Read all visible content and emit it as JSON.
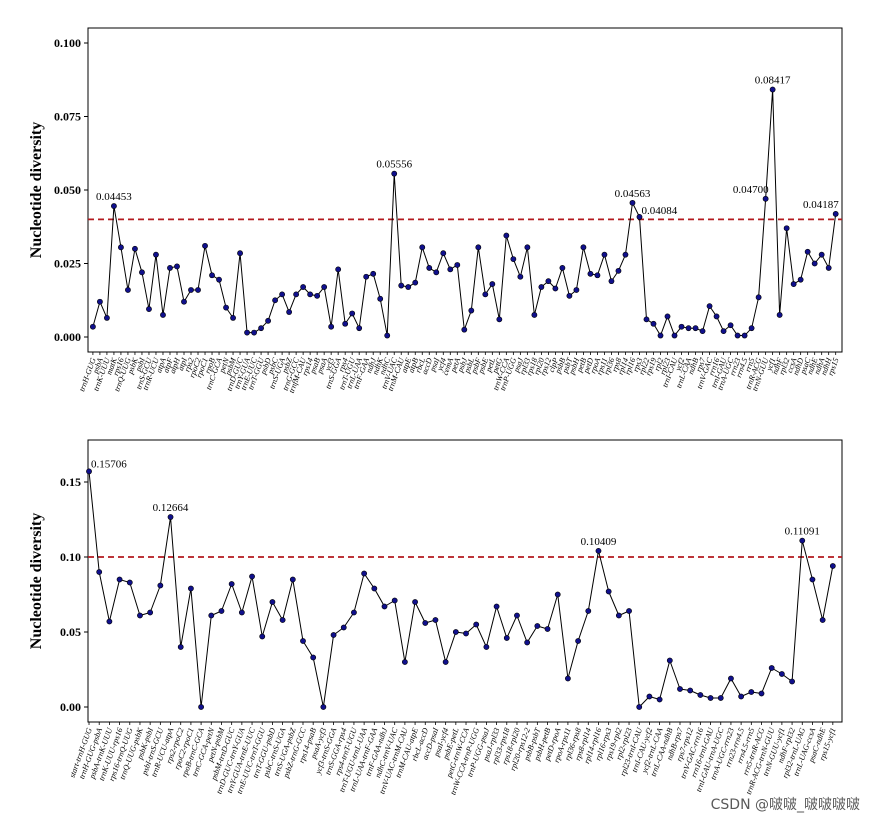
{
  "watermark": "CSDN @啵啵_啵啵啵啵",
  "chart_data": [
    {
      "type": "line",
      "ylabel": "Nucleotide diversity",
      "categories": [
        "trnH-GUG",
        "psbA",
        "trnK-UUU",
        "matK",
        "rps16",
        "trnQ-UUG",
        "psbK",
        "psbI",
        "trnS-GCU",
        "trnR-UCU",
        "atpA",
        "atpF",
        "atpH",
        "atpI",
        "rps2",
        "rpoC2",
        "rpoC1",
        "rpoB",
        "trnC-GCA",
        "petN",
        "psbM",
        "trnD-GUC",
        "trnY-GUA",
        "trnE-UUC",
        "trnT-GGU",
        "psbD",
        "psbC",
        "trnS-UGA",
        "psbZ",
        "trnG-GCC",
        "trnfM-CAU",
        "rps14",
        "psaB",
        "psaA",
        "ycf3",
        "trnS-GGA",
        "rps4",
        "trnT-UGU",
        "trnL-UAA",
        "trnF-GAA",
        "ndhJ",
        "ndhK",
        "ndhC",
        "trnV-UAC",
        "trnM-CAU",
        "atpE",
        "atpB",
        "rbcL",
        "accD",
        "psaI",
        "ycf4",
        "cemA",
        "petA",
        "psbJ",
        "psbL",
        "psbF",
        "psbE",
        "petL",
        "petG",
        "trnW-CCA",
        "trnP-UGG",
        "psaJ",
        "rpl33",
        "rps18",
        "rpl20",
        "rps12",
        "clpP",
        "psbB",
        "psbT",
        "psbH",
        "petB",
        "petD",
        "rpoA",
        "rps11",
        "rpl36",
        "rps8",
        "rpl14",
        "rpl16",
        "rps3",
        "rpl22",
        "rps19",
        "rpl2",
        "rpl23",
        "trnI-CAU",
        "ycf2",
        "trnL-CAA",
        "ndhB",
        "rps7",
        "trnV-GAC",
        "rrn16",
        "trnI-GAU",
        "trnA-UGC",
        "rrn23",
        "rrn4.5",
        "rrn5",
        "trnR-ACG",
        "trnN-GUU",
        "ycf1",
        "ndhF",
        "rpl32",
        "ccsA",
        "ndhD",
        "psaC",
        "ndhE",
        "ndhA",
        "ndhH",
        "rps15"
      ],
      "values": [
        0.0035,
        0.012,
        0.0065,
        0.04453,
        0.0305,
        0.016,
        0.03,
        0.022,
        0.0095,
        0.028,
        0.0075,
        0.0235,
        0.024,
        0.012,
        0.016,
        0.016,
        0.031,
        0.021,
        0.0195,
        0.01,
        0.0065,
        0.0285,
        0.0015,
        0.0015,
        0.003,
        0.0055,
        0.0125,
        0.0145,
        0.0085,
        0.0145,
        0.017,
        0.0145,
        0.014,
        0.017,
        0.0035,
        0.023,
        0.0045,
        0.008,
        0.003,
        0.0205,
        0.0215,
        0.013,
        0.0005,
        0.05556,
        0.0175,
        0.017,
        0.0185,
        0.0305,
        0.0235,
        0.022,
        0.0285,
        0.023,
        0.0245,
        0.0025,
        0.009,
        0.0305,
        0.0145,
        0.018,
        0.006,
        0.0345,
        0.0265,
        0.0205,
        0.0305,
        0.0075,
        0.017,
        0.019,
        0.0165,
        0.0235,
        0.014,
        0.016,
        0.0305,
        0.0215,
        0.021,
        0.028,
        0.019,
        0.0225,
        0.028,
        0.04563,
        0.04084,
        0.006,
        0.0045,
        0.0005,
        0.007,
        0.0005,
        0.0035,
        0.003,
        0.003,
        0.002,
        0.0105,
        0.007,
        0.002,
        0.004,
        0.0005,
        0.0005,
        0.003,
        0.0135,
        0.047,
        0.08417,
        0.0075,
        0.037,
        0.018,
        0.0195,
        0.029,
        0.025,
        0.028,
        0.0235,
        0.04187
      ],
      "yticks": [
        0,
        0.025,
        0.05,
        0.075,
        0.1
      ],
      "ytick_labels": [
        "0.000",
        "0.025",
        "0.050",
        "0.075",
        "0.100"
      ],
      "ylim": [
        -0.0051,
        0.1051
      ],
      "xlim": [
        -0.7,
        106.9
      ],
      "reference_line": {
        "value": 0.04,
        "style": "dashed",
        "color": "#b3191e"
      },
      "annotations": [
        {
          "index": 3,
          "label": "0.04453",
          "position": "top"
        },
        {
          "index": 43,
          "label": "0.05556",
          "position": "top"
        },
        {
          "index": 77,
          "label": "0.04563",
          "position": "top"
        },
        {
          "index": 78,
          "label": "0.04084",
          "position": "top-right"
        },
        {
          "index": 96,
          "label": "0.04700",
          "position": "top-left"
        },
        {
          "index": 97,
          "label": "0.08417",
          "position": "top"
        },
        {
          "index": 106,
          "label": "0.04187",
          "position": "top-left"
        }
      ],
      "line_color": "#000000",
      "marker_color": "#10108c",
      "grid": false,
      "legend": "none"
    },
    {
      "type": "line",
      "ylabel": "Nucleotide diversity",
      "categories": [
        "start-trnH-GUG",
        "trnH-GUG-psbA",
        "psbA-trnK-UUU",
        "trnK-UUU-rps16",
        "rps16-trnQ-UUG",
        "trnQ-UUG-psbK",
        "psbK-psbI",
        "psbI-trnS-GCU",
        "trnR-UCU-atpA",
        "rps2-rpoC2",
        "rpoC2-rpoC1",
        "rpoB-trnC-GCA",
        "trnC-GCA-petN",
        "petN-psbM",
        "psbM-trnD-GUC",
        "trnD-GUC-trnY-GUA",
        "trnY-GUA-trnE-UUC",
        "trnE-UUC-trnT-GGU",
        "trnT-GGU-psbD",
        "psbC-trnS-UGA",
        "trnS-UGA-psbZ",
        "psbZ-trnG-GCC",
        "rps14-psaB",
        "psaA-ycf3",
        "ycf3-trnS-GGA",
        "trnS-GGA-rps4",
        "rps4-trnT-UGU",
        "trnT-UGU-trnL-UAA",
        "trnL-UAA-trnF-GAA",
        "trnF-GAA-ndhJ",
        "ndhC-trnV-UAC",
        "trnV-UAC-trnM-CAU",
        "trnM-CAU-atpE",
        "rbcL-accD",
        "accD-psaI",
        "psaI-ycf4",
        "psbE-petL",
        "petG-trnW-CCA",
        "trnW-CCA-trnP-UGG",
        "trnP-UGG-psaJ",
        "psaJ-rpl33",
        "rpl33-rps18",
        "rps18-rpl20",
        "rpl20-rps12-2",
        "psbB-psbT",
        "psbH-petB",
        "petD-rpoA",
        "rpoA-rps11",
        "rpl36-rps8",
        "rps8-rpl14",
        "rpl14-rpl16",
        "rpl16-rps3",
        "rps19-rpl2",
        "rpl2-rpl23",
        "rpl23-trnI-CAU",
        "trnI-CAU-ycf2",
        "ycf2-trnL-CAA",
        "trnL-CAA-ndhB",
        "ndhB-rps7",
        "rps7-rps12",
        "trnV-GAC-rrn16",
        "rrn16-trnI-GAU",
        "trnI-GAU-trnA-UGC",
        "trnA-UGC-rrn23",
        "rrn23-rrn4.5",
        "rrn4.5-rrn5",
        "rrn5-trnR-ACG",
        "trnR-ACG-trnN-GUU",
        "trnN-GUU-ycf1",
        "ndhF-rpl32",
        "rpl32-trnL-UAG",
        "trnL-UAG-ccsA",
        "psaC-ndhE",
        "rps15-ycf1"
      ],
      "values": [
        0.15706,
        0.09,
        0.057,
        0.085,
        0.083,
        0.061,
        0.063,
        0.081,
        0.12664,
        0.04,
        0.079,
        0.0,
        0.061,
        0.064,
        0.082,
        0.063,
        0.087,
        0.047,
        0.07,
        0.058,
        0.085,
        0.044,
        0.033,
        0.0,
        0.048,
        0.053,
        0.063,
        0.089,
        0.079,
        0.067,
        0.071,
        0.03,
        0.07,
        0.056,
        0.058,
        0.03,
        0.05,
        0.049,
        0.055,
        0.04,
        0.067,
        0.046,
        0.061,
        0.043,
        0.054,
        0.052,
        0.075,
        0.019,
        0.044,
        0.064,
        0.10409,
        0.077,
        0.061,
        0.064,
        0.0,
        0.007,
        0.005,
        0.031,
        0.012,
        0.011,
        0.008,
        0.006,
        0.006,
        0.019,
        0.007,
        0.01,
        0.009,
        0.026,
        0.022,
        0.017,
        0.11091,
        0.085,
        0.058,
        0.094
      ],
      "yticks": [
        0,
        0.05,
        0.1,
        0.15
      ],
      "ytick_labels": [
        "0.00",
        "0.05",
        "0.10",
        "0.15"
      ],
      "ylim": [
        -0.01,
        0.178
      ],
      "xlim": [
        -0.1,
        73.9
      ],
      "reference_line": {
        "value": 0.1,
        "style": "dashed",
        "color": "#b3191e"
      },
      "annotations": [
        {
          "index": 0,
          "label": "0.15706",
          "position": "right"
        },
        {
          "index": 8,
          "label": "0.12664",
          "position": "top"
        },
        {
          "index": 50,
          "label": "0.10409",
          "position": "top"
        },
        {
          "index": 70,
          "label": "0.11091",
          "position": "top"
        }
      ],
      "line_color": "#000000",
      "marker_color": "#10108c",
      "grid": false,
      "legend": "none"
    }
  ]
}
